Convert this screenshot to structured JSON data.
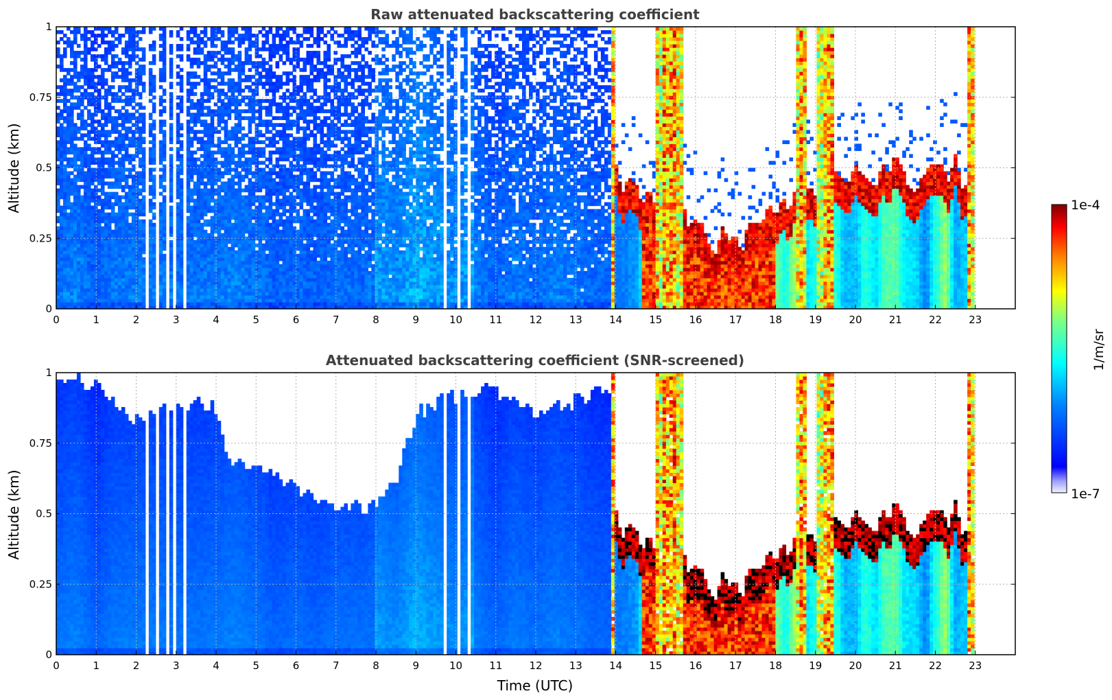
{
  "chart_data": [
    {
      "type": "heatmap",
      "title": "Raw attenuated backscattering coefficient",
      "xlabel": "",
      "ylabel": "Altitude (km)",
      "xlim": [
        0,
        24
      ],
      "ylim": [
        0,
        1
      ],
      "x_ticks": [
        "0",
        "1",
        "2",
        "3",
        "4",
        "5",
        "6",
        "7",
        "8",
        "9",
        "10",
        "11",
        "12",
        "13",
        "14",
        "15",
        "16",
        "17",
        "18",
        "19",
        "20",
        "21",
        "22",
        "23"
      ],
      "y_ticks": [
        "0",
        "0.25",
        "0.5",
        "0.75",
        "1"
      ],
      "grid": true,
      "screened": false
    },
    {
      "type": "heatmap",
      "title": "Attenuated backscattering coefficient (SNR-screened)",
      "xlabel": "Time (UTC)",
      "ylabel": "Altitude (km)",
      "xlim": [
        0,
        24
      ],
      "ylim": [
        0,
        1
      ],
      "x_ticks": [
        "0",
        "1",
        "2",
        "3",
        "4",
        "5",
        "6",
        "7",
        "8",
        "9",
        "10",
        "11",
        "12",
        "13",
        "14",
        "15",
        "16",
        "17",
        "18",
        "19",
        "20",
        "21",
        "22",
        "23"
      ],
      "y_ticks": [
        "0",
        "0.25",
        "0.5",
        "0.75",
        "1"
      ],
      "grid": true,
      "screened": true
    }
  ],
  "colorbar": {
    "label": "1/m/sr",
    "min_label": "1e-7",
    "max_label": "1e-4",
    "scale": "log",
    "colormap": "jet"
  },
  "data_end_hour": 22.95
}
